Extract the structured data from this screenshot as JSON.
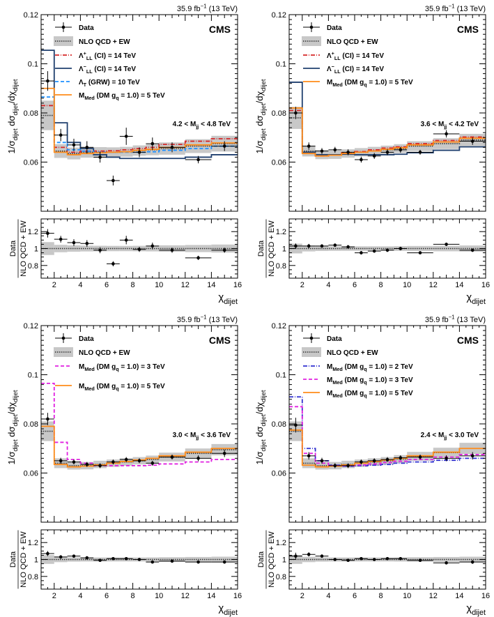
{
  "figure": {
    "lumi_label": "35.9 fb⁻¹ (13 TeV)",
    "experiment_label": "CMS",
    "y_axis_top": "1/σdijet dσdijet/dχdijet",
    "y_axis_ratio": "Data / NLO QCD + EW",
    "x_axis_label": "χdijet"
  },
  "colors": {
    "data": "#000000",
    "nlo_band": "#c8c8c8",
    "nlo_line": "#333333",
    "ci_plus": "#d62728",
    "ci_minus": "#1f3f6e",
    "grw": "#1e90ff",
    "dm5": "#ff8c1a",
    "dm3": "#e020e0",
    "dm2": "#3030d0"
  },
  "chart_data": [
    {
      "type": "line",
      "panel": "top-left",
      "title": "35.9 fb⁻¹ (13 TeV)",
      "mass_bin_label": "4.2 < Mjj < 4.8 TeV",
      "xlabel": "χdijet",
      "ylabel": "1/σdijet dσdijet/dχdijet",
      "ylabel_ratio": "Data / NLO QCD + EW",
      "xlim": [
        1,
        16
      ],
      "ylim": [
        0.04,
        0.12
      ],
      "ratio_ylim": [
        0.65,
        1.35
      ],
      "xticks": [
        2,
        4,
        6,
        8,
        10,
        12,
        14,
        16
      ],
      "yticks": [
        0.06,
        0.08,
        0.1,
        0.12
      ],
      "ratio_yticks": [
        0.8,
        1,
        1.2
      ],
      "bin_edges": [
        1,
        2,
        3,
        4,
        5,
        6,
        7,
        8,
        9,
        10,
        12,
        14,
        16
      ],
      "nlo_qcd_ew": {
        "name": "NLO QCD + EW",
        "values": [
          0.079,
          0.0645,
          0.0635,
          0.064,
          0.064,
          0.064,
          0.0642,
          0.0647,
          0.065,
          0.0655,
          0.0665,
          0.0675
        ],
        "unc": [
          0.006,
          0.0028,
          0.0024,
          0.0022,
          0.0021,
          0.002,
          0.002,
          0.0021,
          0.0022,
          0.0025,
          0.0028,
          0.0032
        ]
      },
      "data": {
        "name": "Data",
        "x": [
          1.5,
          2.5,
          3.5,
          4.5,
          5.5,
          6.5,
          7.5,
          8.5,
          9.5,
          11,
          13,
          15
        ],
        "y": [
          0.093,
          0.071,
          0.067,
          0.066,
          0.062,
          0.0525,
          0.0705,
          0.064,
          0.0675,
          0.066,
          0.061,
          0.0665
        ],
        "err": [
          0.004,
          0.0025,
          0.0025,
          0.0025,
          0.0022,
          0.002,
          0.0035,
          0.002,
          0.0025,
          0.002,
          0.0015,
          0.002
        ]
      },
      "ratio": {
        "x": [
          1.5,
          2.5,
          3.5,
          4.5,
          5.5,
          6.5,
          7.5,
          8.5,
          9.5,
          11,
          13,
          15
        ],
        "y": [
          1.18,
          1.11,
          1.07,
          1.06,
          0.98,
          0.82,
          1.1,
          0.99,
          1.03,
          0.98,
          0.89,
          0.98
        ],
        "err": [
          0.05,
          0.04,
          0.04,
          0.04,
          0.035,
          0.03,
          0.05,
          0.03,
          0.04,
          0.03,
          0.025,
          0.03
        ]
      },
      "series": [
        {
          "name": "Λ+LL (CI) = 14 TeV",
          "color_key": "ci_plus",
          "dash": "6,2,1,2",
          "values": [
            0.083,
            0.066,
            0.064,
            0.0645,
            0.0645,
            0.0646,
            0.065,
            0.0655,
            0.066,
            0.0672,
            0.0685,
            0.0695
          ]
        },
        {
          "name": "Λ−LL (CI) = 14 TeV",
          "color_key": "ci_minus",
          "dash": "",
          "values": [
            0.1055,
            0.076,
            0.068,
            0.0655,
            0.063,
            0.062,
            0.0615,
            0.0615,
            0.0615,
            0.0615,
            0.062,
            0.063
          ]
        },
        {
          "name": "ΛT (GRW) = 10 TeV",
          "color_key": "grw",
          "dash": "5,3",
          "values": [
            0.0865,
            0.068,
            0.065,
            0.0645,
            0.064,
            0.064,
            0.064,
            0.064,
            0.0642,
            0.0648,
            0.0655,
            0.0665
          ]
        },
        {
          "name": "MMed (DM gq = 1.0) = 5 TeV",
          "color_key": "dm5",
          "dash": "",
          "values": [
            0.09,
            0.064,
            0.063,
            0.0635,
            0.0638,
            0.064,
            0.0642,
            0.0648,
            0.0652,
            0.066,
            0.067,
            0.0678
          ]
        }
      ]
    },
    {
      "type": "line",
      "panel": "top-right",
      "title": "35.9 fb⁻¹ (13 TeV)",
      "mass_bin_label": "3.6 < Mjj < 4.2 TeV",
      "xlabel": "χdijet",
      "ylabel": "1/σdijet dσdijet/dχdijet",
      "ylabel_ratio": "Data / NLO QCD + EW",
      "xlim": [
        1,
        16
      ],
      "ylim": [
        0.04,
        0.12
      ],
      "ratio_ylim": [
        0.65,
        1.35
      ],
      "xticks": [
        2,
        4,
        6,
        8,
        10,
        12,
        14,
        16
      ],
      "yticks": [
        0.06,
        0.08,
        0.1,
        0.12
      ],
      "ratio_yticks": [
        0.8,
        1,
        1.2
      ],
      "bin_edges": [
        1,
        2,
        3,
        4,
        5,
        6,
        7,
        8,
        9,
        10,
        12,
        14,
        16
      ],
      "nlo_qcd_ew": {
        "name": "NLO QCD + EW",
        "values": [
          0.078,
          0.0645,
          0.063,
          0.063,
          0.0635,
          0.064,
          0.0645,
          0.065,
          0.0655,
          0.0665,
          0.0675,
          0.069
        ],
        "unc": [
          0.0045,
          0.0022,
          0.0018,
          0.0017,
          0.0017,
          0.0017,
          0.0017,
          0.0017,
          0.0018,
          0.002,
          0.0022,
          0.0025
        ]
      },
      "data": {
        "name": "Data",
        "x": [
          1.5,
          2.5,
          3.5,
          4.5,
          5.5,
          6.5,
          7.5,
          8.5,
          9.5,
          11,
          13,
          15
        ],
        "y": [
          0.08,
          0.0665,
          0.0645,
          0.065,
          0.064,
          0.061,
          0.0625,
          0.064,
          0.065,
          0.064,
          0.0715,
          0.0685
        ],
        "err": [
          0.0025,
          0.0015,
          0.0012,
          0.0012,
          0.0012,
          0.0012,
          0.0012,
          0.0012,
          0.0012,
          0.001,
          0.0015,
          0.0015
        ]
      },
      "ratio": {
        "x": [
          1.5,
          2.5,
          3.5,
          4.5,
          5.5,
          6.5,
          7.5,
          8.5,
          9.5,
          11,
          13,
          15
        ],
        "y": [
          1.03,
          1.03,
          1.03,
          1.04,
          1.02,
          0.95,
          0.97,
          0.98,
          1.0,
          0.95,
          1.05,
          0.98
        ],
        "err": [
          0.03,
          0.025,
          0.02,
          0.02,
          0.02,
          0.02,
          0.02,
          0.02,
          0.02,
          0.015,
          0.02,
          0.02
        ]
      },
      "series": [
        {
          "name": "Λ+LL (CI) = 14 TeV",
          "color_key": "ci_plus",
          "dash": "6,2,1,2",
          "values": [
            0.081,
            0.064,
            0.0625,
            0.063,
            0.0638,
            0.0643,
            0.065,
            0.0657,
            0.0662,
            0.0675,
            0.0688,
            0.0702
          ]
        },
        {
          "name": "Λ−LL (CI) = 14 TeV",
          "color_key": "ci_minus",
          "dash": "",
          "values": [
            0.0925,
            0.064,
            0.063,
            0.063,
            0.0632,
            0.063,
            0.063,
            0.063,
            0.0632,
            0.0638,
            0.0648,
            0.0662
          ]
        },
        {
          "name": "MMed (DM gq = 1.0) = 5 TeV",
          "color_key": "dm5",
          "dash": "",
          "values": [
            0.082,
            0.0635,
            0.0625,
            0.0628,
            0.0635,
            0.064,
            0.0645,
            0.0652,
            0.0658,
            0.067,
            0.0682,
            0.0697
          ]
        }
      ]
    },
    {
      "type": "line",
      "panel": "bottom-left",
      "title": "35.9 fb⁻¹ (13 TeV)",
      "mass_bin_label": "3.0 < Mjj < 3.6 TeV",
      "xlabel": "χdijet",
      "ylabel": "1/σdijet dσdijet/dχdijet",
      "ylabel_ratio": "Data / NLO QCD + EW",
      "xlim": [
        1,
        16
      ],
      "ylim": [
        0.04,
        0.12
      ],
      "ratio_ylim": [
        0.65,
        1.35
      ],
      "xticks": [
        2,
        4,
        6,
        8,
        10,
        12,
        14,
        16
      ],
      "yticks": [
        0.06,
        0.08,
        0.1,
        0.12
      ],
      "ratio_yticks": [
        0.8,
        1,
        1.2
      ],
      "bin_edges": [
        1,
        2,
        3,
        4,
        5,
        6,
        7,
        8,
        9,
        10,
        12,
        14,
        16
      ],
      "nlo_qcd_ew": {
        "name": "NLO QCD + EW",
        "values": [
          0.077,
          0.064,
          0.063,
          0.063,
          0.0635,
          0.064,
          0.0645,
          0.065,
          0.0655,
          0.0665,
          0.068,
          0.0695
        ],
        "unc": [
          0.004,
          0.002,
          0.0016,
          0.0015,
          0.0015,
          0.0015,
          0.0015,
          0.0015,
          0.0016,
          0.0018,
          0.002,
          0.0023
        ]
      },
      "data": {
        "name": "Data",
        "x": [
          1.5,
          2.5,
          3.5,
          4.5,
          5.5,
          6.5,
          7.5,
          8.5,
          9.5,
          11,
          13,
          15
        ],
        "y": [
          0.082,
          0.065,
          0.0645,
          0.0635,
          0.063,
          0.0645,
          0.0655,
          0.065,
          0.064,
          0.0665,
          0.066,
          0.068
        ],
        "err": [
          0.0025,
          0.0012,
          0.001,
          0.001,
          0.001,
          0.001,
          0.001,
          0.001,
          0.001,
          0.001,
          0.0012,
          0.0015
        ]
      },
      "ratio": {
        "x": [
          1.5,
          2.5,
          3.5,
          4.5,
          5.5,
          6.5,
          7.5,
          8.5,
          9.5,
          11,
          13,
          15
        ],
        "y": [
          1.07,
          1.03,
          1.04,
          1.02,
          0.99,
          1.01,
          1.01,
          1.0,
          0.97,
          0.98,
          0.97,
          0.97
        ],
        "err": [
          0.03,
          0.02,
          0.018,
          0.016,
          0.015,
          0.015,
          0.015,
          0.015,
          0.015,
          0.015,
          0.017,
          0.02
        ]
      },
      "series": [
        {
          "name": "MMed (DM gq = 1.0) = 3 TeV",
          "color_key": "dm3",
          "dash": "5,3",
          "values": [
            0.0965,
            0.0725,
            0.0655,
            0.064,
            0.063,
            0.063,
            0.063,
            0.063,
            0.0632,
            0.0637,
            0.0645,
            0.0655
          ]
        },
        {
          "name": "MMed (DM gq = 1.0) = 5 TeV",
          "color_key": "dm5",
          "dash": "",
          "values": [
            0.079,
            0.0635,
            0.0625,
            0.0628,
            0.0633,
            0.064,
            0.0647,
            0.0653,
            0.066,
            0.067,
            0.0685,
            0.07
          ]
        }
      ]
    },
    {
      "type": "line",
      "panel": "bottom-right",
      "title": "35.9 fb⁻¹ (13 TeV)",
      "mass_bin_label": "2.4 < Mjj < 3.0 TeV",
      "xlabel": "χdijet",
      "ylabel": "1/σdijet dσdijet/dχdijet",
      "ylabel_ratio": "Data / NLO QCD + EW",
      "xlim": [
        1,
        16
      ],
      "ylim": [
        0.04,
        0.12
      ],
      "ratio_ylim": [
        0.65,
        1.35
      ],
      "xticks": [
        2,
        4,
        6,
        8,
        10,
        12,
        14,
        16
      ],
      "yticks": [
        0.06,
        0.08,
        0.1,
        0.12
      ],
      "ratio_yticks": [
        0.8,
        1,
        1.2
      ],
      "bin_edges": [
        1,
        2,
        3,
        4,
        5,
        6,
        7,
        8,
        9,
        10,
        12,
        14,
        16
      ],
      "nlo_qcd_ew": {
        "name": "NLO QCD + EW",
        "values": [
          0.077,
          0.064,
          0.063,
          0.063,
          0.0635,
          0.064,
          0.0645,
          0.065,
          0.0657,
          0.0668,
          0.0683,
          0.07
        ],
        "unc": [
          0.004,
          0.002,
          0.0016,
          0.0015,
          0.0015,
          0.0015,
          0.0015,
          0.0015,
          0.0016,
          0.0018,
          0.002,
          0.0023
        ]
      },
      "data": {
        "name": "Data",
        "x": [
          1.5,
          2.5,
          3.5,
          4.5,
          5.5,
          6.5,
          7.5,
          8.5,
          9.5,
          11,
          13,
          15
        ],
        "y": [
          0.0795,
          0.067,
          0.065,
          0.063,
          0.063,
          0.0645,
          0.065,
          0.0655,
          0.0662,
          0.0665,
          0.066,
          0.067
        ],
        "err": [
          0.003,
          0.0015,
          0.0012,
          0.001,
          0.001,
          0.001,
          0.001,
          0.001,
          0.001,
          0.001,
          0.0012,
          0.0015
        ]
      },
      "ratio": {
        "x": [
          1.5,
          2.5,
          3.5,
          4.5,
          5.5,
          6.5,
          7.5,
          8.5,
          9.5,
          11,
          13,
          15
        ],
        "y": [
          1.04,
          1.06,
          1.04,
          1.0,
          0.99,
          1.01,
          1.0,
          1.01,
          1.01,
          0.99,
          0.96,
          0.97
        ],
        "err": [
          0.04,
          0.025,
          0.02,
          0.016,
          0.015,
          0.015,
          0.015,
          0.015,
          0.015,
          0.015,
          0.018,
          0.022
        ]
      },
      "series": [
        {
          "name": "MMed (DM gq = 1.0) = 2 TeV",
          "color_key": "dm2",
          "dash": "6,2,1,2",
          "values": [
            0.091,
            0.07,
            0.065,
            0.0632,
            0.0628,
            0.063,
            0.0632,
            0.0635,
            0.064,
            0.0645,
            0.0652,
            0.066
          ]
        },
        {
          "name": "MMed (DM gq = 1.0) = 3 TeV",
          "color_key": "dm3",
          "dash": "5,3",
          "values": [
            0.087,
            0.068,
            0.064,
            0.063,
            0.063,
            0.0633,
            0.0637,
            0.0643,
            0.0648,
            0.0655,
            0.0665,
            0.0675
          ]
        },
        {
          "name": "MMed (DM gq = 1.0) = 5 TeV",
          "color_key": "dm5",
          "dash": "",
          "values": [
            0.0775,
            0.0632,
            0.0625,
            0.0628,
            0.0633,
            0.064,
            0.0647,
            0.0653,
            0.066,
            0.067,
            0.0685,
            0.07
          ]
        }
      ]
    }
  ]
}
